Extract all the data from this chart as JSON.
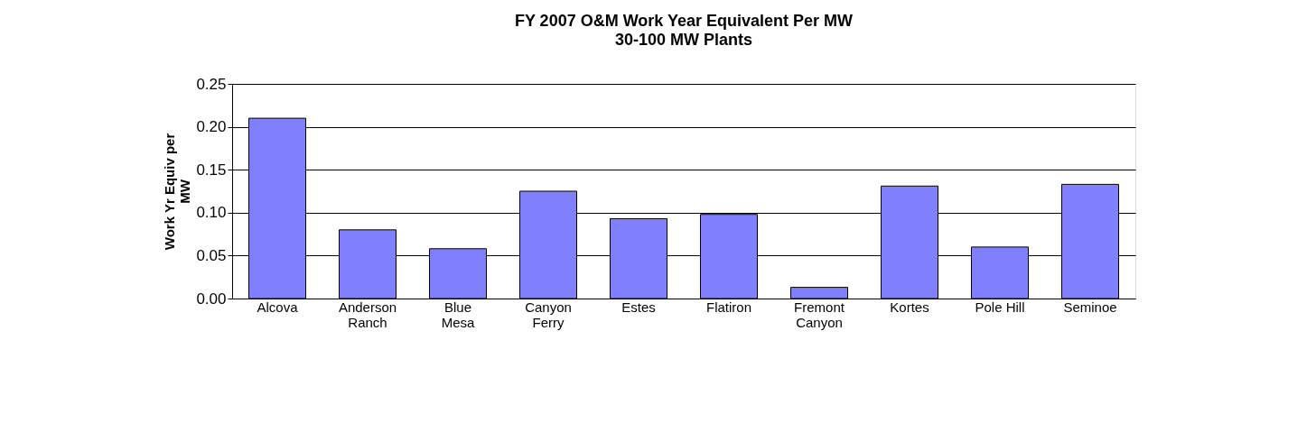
{
  "chart_data": {
    "type": "bar",
    "title": "FY 2007 O&M Work Year Equivalent Per MW",
    "subtitle": "30-100 MW Plants",
    "ylabel": "Work Yr Equiv per\nMW",
    "categories": [
      "Alcova",
      "Anderson\nRanch",
      "Blue\nMesa",
      "Canyon\nFerry",
      "Estes",
      "Flatiron",
      "Fremont\nCanyon",
      "Kortes",
      "Pole Hill",
      "Seminoe"
    ],
    "values": [
      0.21,
      0.08,
      0.058,
      0.125,
      0.093,
      0.098,
      0.013,
      0.131,
      0.06,
      0.133
    ],
    "color": "#8080ff",
    "ylim": [
      0,
      0.25
    ],
    "yticks": [
      {
        "value": 0,
        "label": "0.00"
      },
      {
        "value": 0.05,
        "label": "0.05"
      },
      {
        "value": 0.1,
        "label": "0.10"
      },
      {
        "value": 0.15,
        "label": "0.15"
      },
      {
        "value": 0.2,
        "label": "0.20"
      },
      {
        "value": 0.25,
        "label": "0.25"
      }
    ],
    "grid": "y"
  }
}
